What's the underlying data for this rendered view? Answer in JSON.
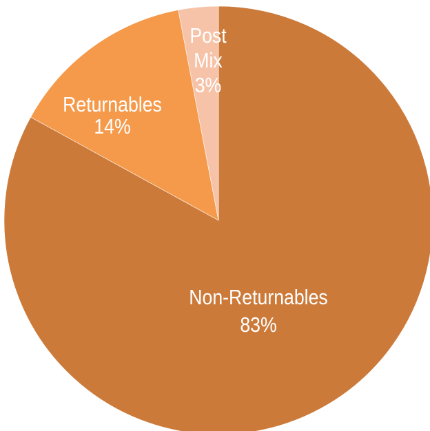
{
  "chart_data": {
    "type": "pie",
    "title": "",
    "slices": [
      {
        "label": "Non-Returnables",
        "value": 83,
        "value_label": "83%",
        "color": "#CC7A3A"
      },
      {
        "label": "Returnables",
        "value": 14,
        "value_label": "14%",
        "color": "#F59A4B"
      },
      {
        "label": "Post Mix",
        "value": 3,
        "value_label": "3%",
        "color": "#F6C3A9"
      }
    ],
    "start_angle": "12 o'clock",
    "direction": "clockwise",
    "legend": "none",
    "labels": "inside slices"
  }
}
